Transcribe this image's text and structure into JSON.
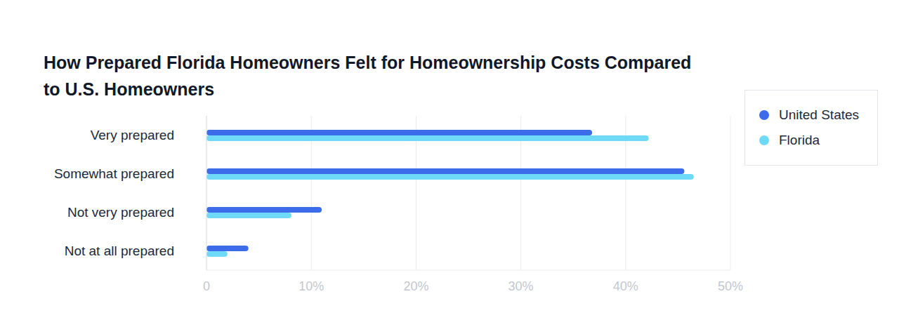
{
  "chart_data": {
    "type": "bar",
    "orientation": "horizontal",
    "title": "How Prepared Florida Homeowners Felt for Homeownership Costs Compared to U.S. Homeowners",
    "categories": [
      "Very prepared",
      "Somewhat prepared",
      "Not very prepared",
      "Not at all prepared"
    ],
    "series": [
      {
        "name": "United States",
        "color": "#3d6ceb",
        "values": [
          36.8,
          45.6,
          11,
          4
        ]
      },
      {
        "name": "Florida",
        "color": "#6fdaf8",
        "values": [
          42.2,
          46.5,
          8.1,
          2
        ]
      }
    ],
    "xlim": [
      0,
      50
    ],
    "xticks": [
      0,
      {
        "value": 10,
        "label": "10%"
      },
      {
        "value": 20,
        "label": "20%"
      },
      {
        "value": 30,
        "label": "30%"
      },
      {
        "value": 40,
        "label": "40%"
      },
      {
        "value": 50,
        "label": "50%"
      }
    ],
    "grid": true,
    "legend": "upper right"
  }
}
